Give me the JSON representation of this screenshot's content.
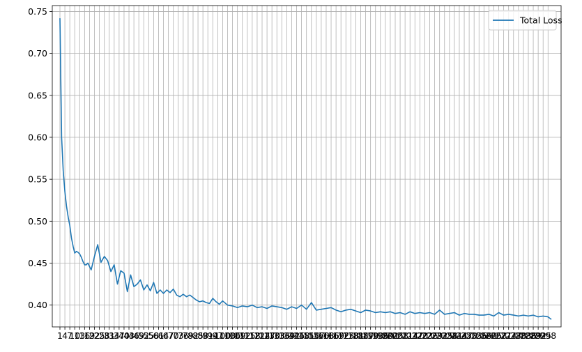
{
  "chart_data": {
    "type": "line",
    "title": "",
    "xlabel": "",
    "ylabel": "",
    "grid": true,
    "legend_position": "top-right",
    "xlim": [
      1,
      300
    ],
    "ylim": [
      0.374,
      0.757
    ],
    "x_tick_step": 3,
    "yticks": [
      0.4,
      0.45,
      0.5,
      0.55,
      0.6,
      0.65,
      0.7,
      0.75
    ],
    "ytick_labels": [
      "0.40",
      "0.45",
      "0.50",
      "0.55",
      "0.60",
      "0.65",
      "0.70",
      "0.75"
    ],
    "series": [
      {
        "name": "Total Loss",
        "color": "#1f77b4",
        "x": [
          1,
          2,
          3,
          4,
          5,
          6,
          7,
          8,
          9,
          10,
          11,
          12,
          13,
          14,
          15,
          16,
          17,
          18,
          19,
          20,
          22,
          24,
          26,
          28,
          30,
          32,
          34,
          36,
          38,
          40,
          42,
          44,
          46,
          48,
          50,
          52,
          54,
          56,
          58,
          60,
          62,
          64,
          66,
          68,
          70,
          72,
          74,
          76,
          78,
          80,
          82,
          84,
          86,
          88,
          90,
          92,
          94,
          96,
          98,
          100,
          103,
          106,
          109,
          112,
          115,
          118,
          121,
          124,
          127,
          130,
          133,
          136,
          139,
          142,
          145,
          148,
          151,
          154,
          157,
          160,
          163,
          166,
          169,
          172,
          175,
          178,
          181,
          184,
          187,
          190,
          193,
          196,
          199,
          202,
          205,
          208,
          211,
          214,
          217,
          220,
          223,
          226,
          229,
          232,
          235,
          238,
          241,
          244,
          247,
          250,
          253,
          256,
          259,
          262,
          265,
          268,
          271,
          274,
          277,
          280,
          283,
          286,
          289,
          292,
          295,
          298,
          300
        ],
        "values": [
          0.742,
          0.6,
          0.56,
          0.535,
          0.518,
          0.505,
          0.495,
          0.48,
          0.47,
          0.462,
          0.464,
          0.463,
          0.461,
          0.457,
          0.452,
          0.448,
          0.448,
          0.45,
          0.446,
          0.442,
          0.458,
          0.472,
          0.451,
          0.458,
          0.453,
          0.44,
          0.448,
          0.425,
          0.441,
          0.438,
          0.416,
          0.436,
          0.422,
          0.425,
          0.43,
          0.418,
          0.424,
          0.417,
          0.427,
          0.414,
          0.418,
          0.414,
          0.418,
          0.415,
          0.419,
          0.412,
          0.41,
          0.413,
          0.41,
          0.412,
          0.409,
          0.406,
          0.404,
          0.405,
          0.403,
          0.402,
          0.408,
          0.404,
          0.401,
          0.405,
          0.4,
          0.399,
          0.397,
          0.399,
          0.398,
          0.4,
          0.397,
          0.398,
          0.396,
          0.399,
          0.398,
          0.397,
          0.395,
          0.398,
          0.396,
          0.4,
          0.395,
          0.403,
          0.394,
          0.395,
          0.396,
          0.397,
          0.394,
          0.392,
          0.394,
          0.395,
          0.393,
          0.391,
          0.394,
          0.393,
          0.391,
          0.392,
          0.391,
          0.392,
          0.39,
          0.391,
          0.389,
          0.392,
          0.39,
          0.391,
          0.39,
          0.391,
          0.389,
          0.394,
          0.389,
          0.39,
          0.391,
          0.388,
          0.39,
          0.389,
          0.389,
          0.388,
          0.388,
          0.389,
          0.387,
          0.391,
          0.388,
          0.389,
          0.388,
          0.387,
          0.388,
          0.387,
          0.388,
          0.386,
          0.387,
          0.386,
          0.383
        ]
      }
    ]
  }
}
